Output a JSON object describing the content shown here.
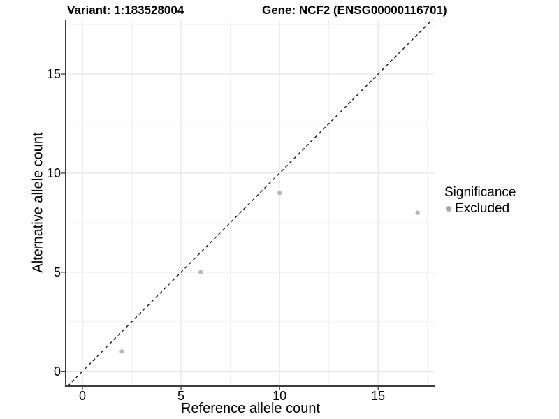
{
  "chart_data": {
    "type": "scatter",
    "title_left": "Variant: 1:183528004",
    "title_right": "Gene: NCF2 (ENSG00000116701)",
    "xlabel": "Reference allele count",
    "ylabel": "Alternative allele count",
    "xlim": [
      -0.85,
      17.9
    ],
    "ylim": [
      -0.75,
      17.75
    ],
    "x_ticks": {
      "major": [
        0,
        5,
        10,
        15
      ],
      "minor": [
        2.5,
        7.5,
        12.5,
        17.5
      ]
    },
    "y_ticks": {
      "major": [
        0,
        5,
        10,
        15
      ],
      "minor": [
        2.5,
        7.5,
        12.5,
        17.5
      ]
    },
    "points": [
      {
        "x": 2,
        "y": 1,
        "significance": "Excluded"
      },
      {
        "x": 6,
        "y": 5,
        "significance": "Excluded"
      },
      {
        "x": 10,
        "y": 9,
        "significance": "Excluded"
      },
      {
        "x": 17,
        "y": 8,
        "significance": "Excluded"
      }
    ],
    "identity_line": {
      "slope": 1,
      "intercept": 0,
      "style": "dashed"
    },
    "grid": true,
    "legend": {
      "title": "Significance",
      "position": "right",
      "items": [
        {
          "label": "Excluded",
          "color": "#a9a9a9"
        }
      ]
    },
    "colors": {
      "point": "#b9b9b9",
      "line": "#1a1a1a",
      "grid_major": "#e3e3e3",
      "grid_minor": "#f0f0f0",
      "axis": "#3c3c3c",
      "text": "#000000",
      "background": "#ffffff"
    }
  }
}
